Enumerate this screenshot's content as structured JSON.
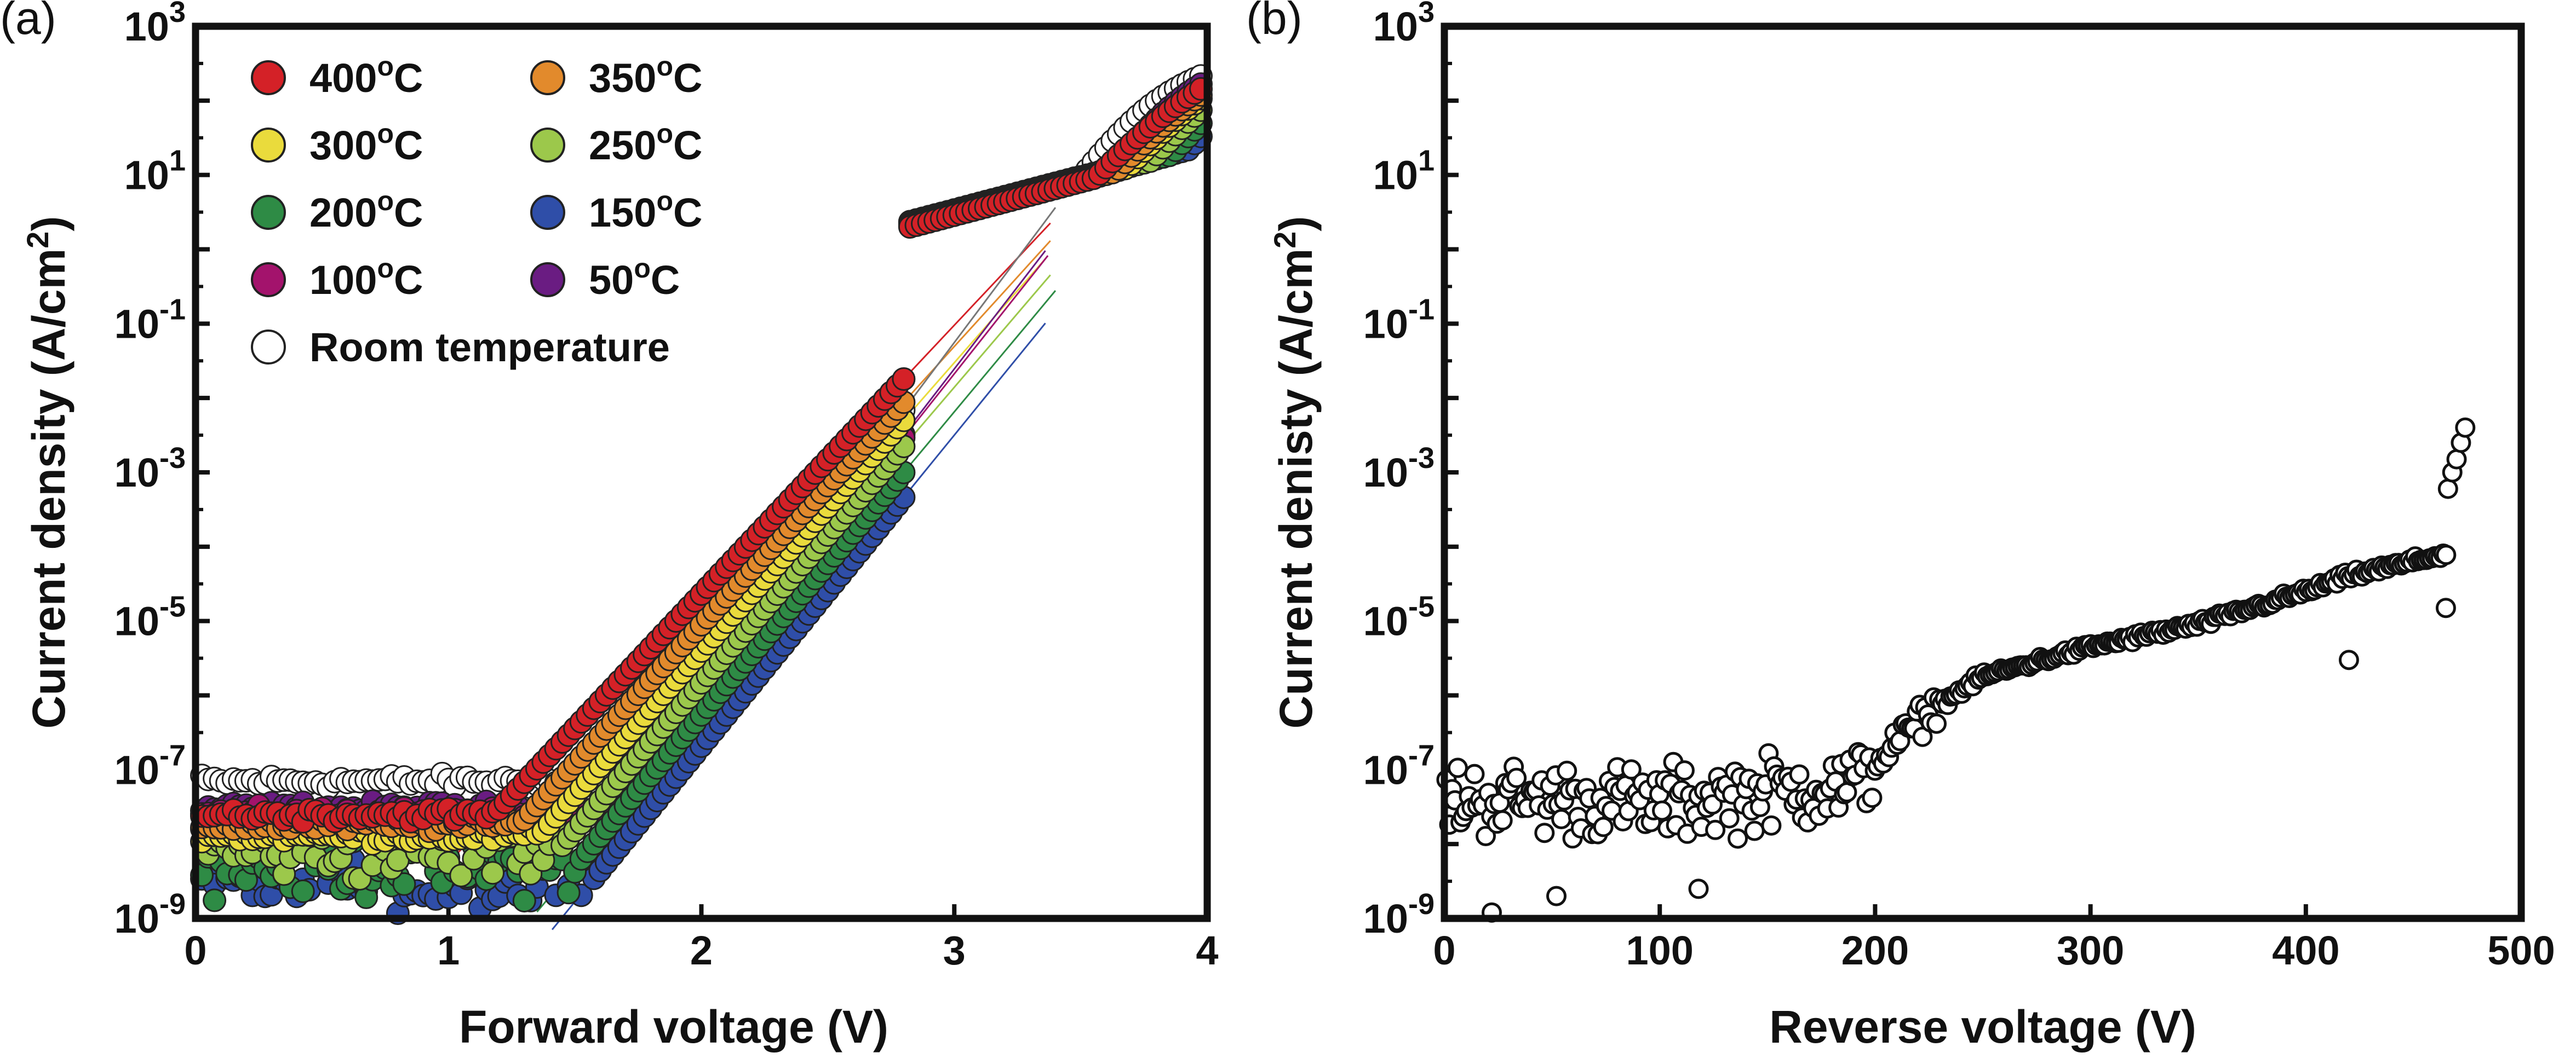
{
  "chart_data": [
    {
      "panel": "(a)",
      "type": "scatter",
      "xlabel": "Forward voltage (V)",
      "ylabel_text": "Current density (A/cm",
      "ylabel_sup": "2",
      "ylabel_close": ")",
      "xlim": [
        0,
        4
      ],
      "ylim": [
        1e-09,
        1000
      ],
      "yscale": "log",
      "grid": false,
      "legend": "top-left",
      "x_ticks": [
        "0",
        "1",
        "2",
        "3",
        "4"
      ],
      "y_ticks": [
        {
          "base": "10",
          "exp": "3"
        },
        {
          "base": "10",
          "exp": "1"
        },
        {
          "base": "10",
          "exp": "-1"
        },
        {
          "base": "10",
          "exp": "-3"
        },
        {
          "base": "10",
          "exp": "-5"
        },
        {
          "base": "10",
          "exp": "-7"
        },
        {
          "base": "10",
          "exp": "-9"
        }
      ],
      "series": [
        {
          "name": "400",
          "unit_sup": "o",
          "unit_suffix": "C",
          "color": "#d42127",
          "v_on": 1.18,
          "ideality": 2.16,
          "floor": 2.5e-08,
          "series_r": 0.085
        },
        {
          "name": "350",
          "unit_sup": "o",
          "unit_suffix": "C",
          "color": "#e28a2c",
          "v_on": 1.28,
          "ideality": 2.13,
          "floor": 1.8e-08,
          "series_r": 0.087
        },
        {
          "name": "300",
          "unit_sup": "o",
          "unit_suffix": "C",
          "color": "#eadb3c",
          "v_on": 1.36,
          "ideality": 2.1,
          "floor": 1.3e-08,
          "series_r": 0.089
        },
        {
          "name": "250",
          "unit_sup": "o",
          "unit_suffix": "C",
          "color": "#9cc84b",
          "v_on": 1.43,
          "ideality": 2.08,
          "floor": 8e-09,
          "series_r": 0.091
        },
        {
          "name": "200",
          "unit_sup": "o",
          "unit_suffix": "C",
          "color": "#2e8b45",
          "v_on": 1.5,
          "ideality": 2.06,
          "floor": 5e-09,
          "series_r": 0.093
        },
        {
          "name": "150",
          "unit_sup": "o",
          "unit_suffix": "C",
          "color": "#2f4ea8",
          "v_on": 1.56,
          "ideality": 2.04,
          "floor": 3e-09,
          "series_r": 0.095
        },
        {
          "name": "100",
          "unit_sup": "o",
          "unit_suffix": "C",
          "color": "#a3136c",
          "v_on": 1.62,
          "ideality": 2.02,
          "floor": 2.5e-08,
          "series_r": 0.097
        },
        {
          "name": "50",
          "unit_sup": "o",
          "unit_suffix": "C",
          "color": "#6a1c82",
          "v_on": 1.66,
          "ideality": 2.0,
          "floor": 3e-08,
          "series_r": 0.099
        },
        {
          "name": "Room temperature",
          "unit_sup": "",
          "unit_suffix": "",
          "color": "#ffffff",
          "v_on": 1.7,
          "ideality": 1.98,
          "floor": 7e-08,
          "series_r": 0.1
        }
      ]
    },
    {
      "panel": "(b)",
      "type": "scatter",
      "xlabel": "Reverse voltage (V)",
      "ylabel_text": "Current denisty (A/cm",
      "ylabel_sup": "2",
      "ylabel_close": ")",
      "xlim": [
        0,
        500
      ],
      "ylim": [
        1e-09,
        1000
      ],
      "yscale": "log",
      "grid": false,
      "x_ticks": [
        "0",
        "100",
        "200",
        "300",
        "400",
        "500"
      ],
      "y_ticks": [
        {
          "base": "10",
          "exp": "3"
        },
        {
          "base": "10",
          "exp": "1"
        },
        {
          "base": "10",
          "exp": "-1"
        },
        {
          "base": "10",
          "exp": "-3"
        },
        {
          "base": "10",
          "exp": "-5"
        },
        {
          "base": "10",
          "exp": "-7"
        },
        {
          "base": "10",
          "exp": "-9"
        }
      ],
      "trend": [
        [
          0,
          4e-08
        ],
        [
          50,
          4e-08
        ],
        [
          100,
          3.5e-08
        ],
        [
          150,
          5e-08
        ],
        [
          190,
          6e-08
        ],
        [
          200,
          1.2e-07
        ],
        [
          225,
          6e-07
        ],
        [
          250,
          1.8e-06
        ],
        [
          300,
          4.5e-06
        ],
        [
          350,
          9e-06
        ],
        [
          400,
          2.5e-05
        ],
        [
          420,
          4e-05
        ],
        [
          465,
          8e-05
        ]
      ],
      "outliers": [
        [
          420,
          3e-06
        ],
        [
          465,
          1.5e-05
        ],
        [
          466,
          0.0006
        ],
        [
          468,
          0.001
        ],
        [
          470,
          0.0015
        ],
        [
          472,
          0.0025
        ],
        [
          474,
          0.004
        ],
        [
          22,
          1.2e-09
        ],
        [
          52,
          2e-09
        ],
        [
          118,
          2.5e-09
        ]
      ]
    }
  ]
}
